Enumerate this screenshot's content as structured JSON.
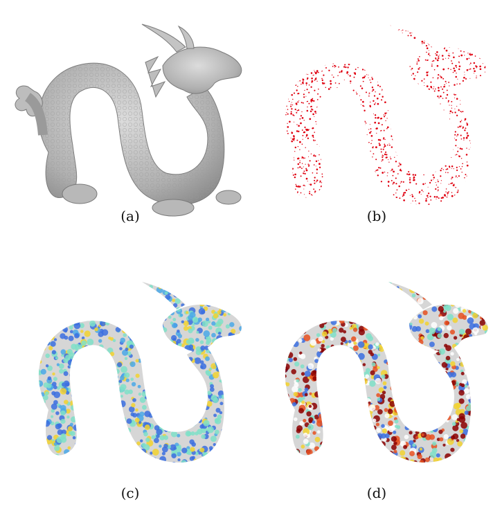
{
  "figure": {
    "panels": [
      {
        "id": "a",
        "caption": "(a)",
        "render": "gray-shaded-mesh"
      },
      {
        "id": "b",
        "caption": "(b)",
        "render": "red-point-cloud"
      },
      {
        "id": "c",
        "caption": "(c)",
        "render": "jet-heatmap-mesh-low"
      },
      {
        "id": "d",
        "caption": "(d)",
        "render": "jet-heatmap-mesh-high"
      }
    ],
    "colors": {
      "mesh_gray": "#b4b4b4",
      "mesh_shadow": "#8a8a8a",
      "points_red": "#e00010",
      "heat_low": "#3b6fe0",
      "heat_mid": "#7fe0c8",
      "heat_high": "#f2d230",
      "heat_max": "#8b0000"
    }
  }
}
